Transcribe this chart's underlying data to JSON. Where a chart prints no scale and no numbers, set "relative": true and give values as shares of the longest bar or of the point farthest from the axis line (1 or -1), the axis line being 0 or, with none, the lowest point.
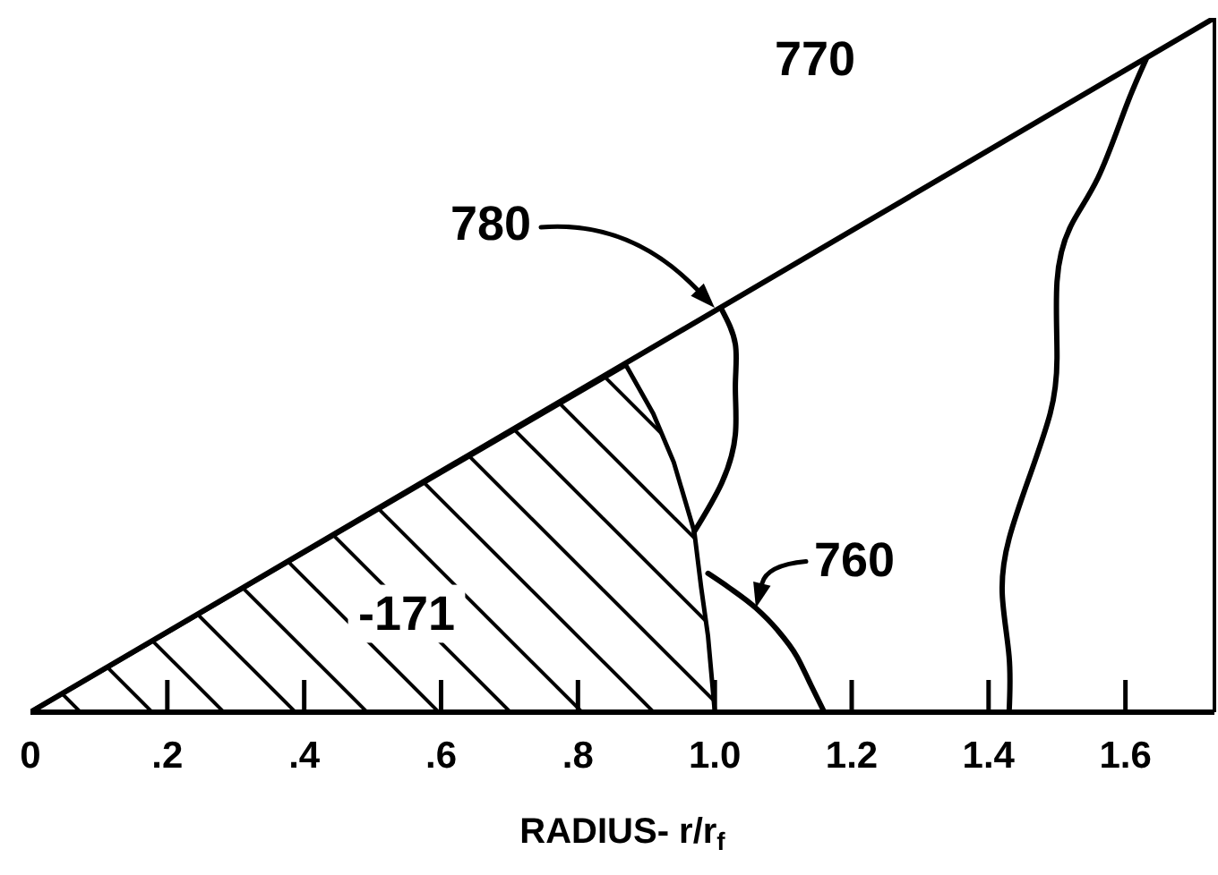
{
  "chart_data": {
    "type": "line",
    "xlabel": "RADIUS- r/r$_{f}$",
    "relative": true,
    "xlim": [
      0,
      1.73
    ],
    "xticks": [
      0,
      {
        "value": 0.2,
        "label": ".2"
      },
      {
        "value": 0.4,
        "label": ".4"
      },
      {
        "value": 0.6,
        "label": ".6"
      },
      {
        "value": 0.8,
        "label": ".8"
      },
      {
        "value": 1,
        "label": "1.0"
      },
      1.2,
      1.4,
      1.6
    ],
    "series": [
      {
        "type": "area",
        "color": "#000000",
        "x": [
          0,
          0.87,
          0.91,
          0.94,
          0.97,
          0.98,
          0.99,
          1.0
        ],
        "values": [
          0,
          0.5,
          0.43,
          0.36,
          0.26,
          0.18,
          0.11,
          0
        ]
      },
      {
        "type": "line",
        "color": "#000000",
        "x": [
          0,
          1.73
        ],
        "values": [
          0,
          1
        ]
      },
      {
        "color": "#000000",
        "x": [
          1.01,
          1.03,
          1.03,
          1.03,
          1.01,
          0.97
        ],
        "values": [
          0.58,
          0.53,
          0.47,
          0.4,
          0.33,
          0.26
        ]
      },
      {
        "color": "#000000",
        "x": [
          0.99,
          1.02,
          1.06,
          1.09,
          1.12,
          1.14,
          1.16
        ],
        "values": [
          0.2,
          0.18,
          0.15,
          0.12,
          0.08,
          0.04,
          0
        ]
      },
      {
        "color": "#000000",
        "x": [
          1.63,
          1.6,
          1.56,
          1.52,
          1.5,
          1.5,
          1.49,
          1.46,
          1.43,
          1.42,
          1.43,
          1.43
        ],
        "values": [
          0.94,
          0.87,
          0.77,
          0.7,
          0.62,
          0.51,
          0.43,
          0.34,
          0.25,
          0.17,
          0.08,
          0
        ]
      }
    ],
    "annotations": [
      "770",
      "780",
      {
        "text": "760",
        "x": 1.06,
        "y": 0.15
      },
      "-171"
    ]
  }
}
